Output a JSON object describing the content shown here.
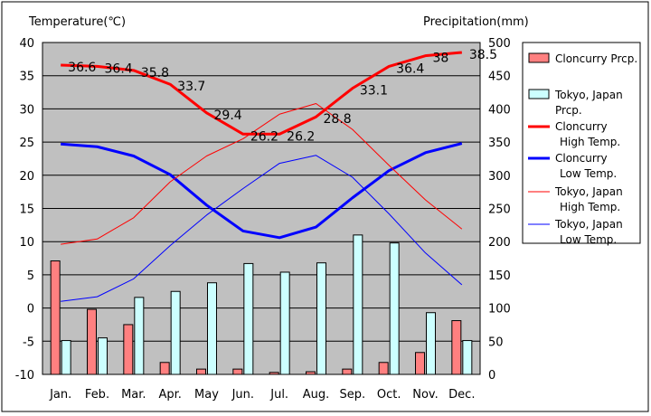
{
  "chart_data": {
    "type": "bar",
    "title": "",
    "y_left_label": "Temperature(℃)",
    "y_right_label": "Precipitation(mm)",
    "ylim_left": [
      -10,
      40
    ],
    "ylim_right": [
      0,
      500
    ],
    "y_left_ticks": [
      "40",
      "35",
      "30",
      "25",
      "20",
      "15",
      "10",
      "5",
      "0",
      "-5",
      "-10"
    ],
    "y_right_ticks": [
      "500",
      "450",
      "400",
      "350",
      "300",
      "250",
      "200",
      "150",
      "100",
      "50",
      "0"
    ],
    "categories": [
      "Jan.",
      "Feb.",
      "Mar.",
      "Apr.",
      "May",
      "Jun.",
      "Jul.",
      "Aug.",
      "Sep.",
      "Oct.",
      "Nov.",
      "Dec."
    ],
    "grid": true,
    "legend_position": "right",
    "bar_series": [
      {
        "name": "Cloncurry Prcp.",
        "label_lines": [
          "Cloncurry Prcp."
        ],
        "color": "#ff8080",
        "axis": "right",
        "values": [
          171,
          98,
          75,
          18,
          8,
          8,
          3,
          4,
          8,
          18,
          33,
          81
        ]
      },
      {
        "name": "Tokyo, Japan Prcp.",
        "label_lines": [
          "Tokyo, Japan",
          "Prcp."
        ],
        "color": "#ccffff",
        "axis": "right",
        "values": [
          51,
          55,
          116,
          125,
          138,
          167,
          154,
          168,
          210,
          198,
          93,
          51
        ]
      }
    ],
    "line_series": [
      {
        "name": "Cloncurry High Temp.",
        "label_lines": [
          "Cloncurry",
          "High Temp."
        ],
        "color": "#ff0000",
        "width": 3,
        "axis": "left",
        "values": [
          36.6,
          36.4,
          35.8,
          33.7,
          29.4,
          26.2,
          26.2,
          28.8,
          33.1,
          36.4,
          38,
          38.5
        ],
        "labels": [
          "36.6",
          "36.4",
          "35.8",
          "33.7",
          "29.4",
          "26.2",
          "26.2",
          "28.8",
          "33.1",
          "36.4",
          "38",
          "38.5"
        ]
      },
      {
        "name": "Cloncurry Low Temp.",
        "label_lines": [
          "Cloncurry",
          "Low Temp."
        ],
        "color": "#0000ff",
        "width": 3,
        "axis": "left",
        "values": [
          24.7,
          24.3,
          22.9,
          20.1,
          15.5,
          11.6,
          10.6,
          12.2,
          16.6,
          20.7,
          23.4,
          24.8
        ]
      },
      {
        "name": "Tokyo, Japan High Temp.",
        "label_lines": [
          "Tokyo, Japan",
          "High Temp."
        ],
        "color": "#ff0000",
        "width": 1,
        "axis": "left",
        "values": [
          9.6,
          10.4,
          13.6,
          19.0,
          22.9,
          25.5,
          29.2,
          30.8,
          26.9,
          21.5,
          16.3,
          11.9
        ]
      },
      {
        "name": "Tokyo, Japan Low Temp.",
        "label_lines": [
          "Tokyo, Japan",
          "Low Temp."
        ],
        "color": "#0000ff",
        "width": 1,
        "axis": "left",
        "values": [
          1.0,
          1.7,
          4.4,
          9.4,
          14.0,
          18.0,
          21.8,
          23.0,
          19.7,
          14.2,
          8.3,
          3.5
        ]
      }
    ]
  }
}
